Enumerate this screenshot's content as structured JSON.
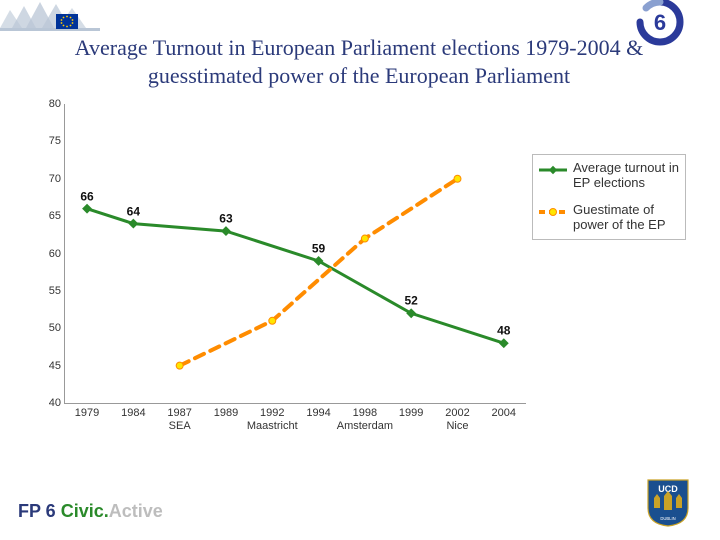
{
  "title": "Average Turnout in European Parliament elections 1979-2004 & guesstimated  power of the European Parliament",
  "chart": {
    "type": "line",
    "ylim": [
      40,
      80
    ],
    "ytick_step": 5,
    "background_color": "#ffffff",
    "axis_color": "#999999",
    "label_fontsize": 11,
    "datalabel_fontsize": 12,
    "x_categories": [
      {
        "label": "1979",
        "sub": ""
      },
      {
        "label": "1984",
        "sub": ""
      },
      {
        "label": "1987",
        "sub": "SEA"
      },
      {
        "label": "1989",
        "sub": ""
      },
      {
        "label": "1992",
        "sub": "Maastricht"
      },
      {
        "label": "1994",
        "sub": ""
      },
      {
        "label": "1998",
        "sub": "Amsterdam"
      },
      {
        "label": "1999",
        "sub": ""
      },
      {
        "label": "2002",
        "sub": "Nice"
      },
      {
        "label": "2004",
        "sub": ""
      }
    ],
    "x_positions": [
      0.05,
      0.155,
      0.26,
      0.365,
      0.47,
      0.575,
      0.68,
      0.785,
      0.89,
      0.995
    ],
    "series": [
      {
        "name": "Average turnout in EP elections",
        "color": "#2a8a2a",
        "line_width": 3,
        "dash": "none",
        "marker": "diamond",
        "marker_size": 7,
        "marker_color": "#2a8a2a",
        "x_idx": [
          0,
          1,
          3,
          5,
          7,
          9
        ],
        "y": [
          66,
          64,
          63,
          59,
          52,
          48
        ],
        "show_labels": true
      },
      {
        "name": "Guestimate of power of the EP",
        "color": "#ff8c00",
        "line_width": 4,
        "dash": "10,7",
        "marker": "circle",
        "marker_size": 7,
        "marker_color": "#ffe600",
        "marker_stroke": "#ff8c00",
        "x_idx": [
          2,
          4,
          6,
          8
        ],
        "y": [
          45,
          51,
          62,
          70
        ],
        "show_labels": false
      }
    ]
  },
  "legend": {
    "items": [
      {
        "label": "Average turnout in EP elections"
      },
      {
        "label": "Guestimate of power of the EP"
      }
    ]
  },
  "footer": {
    "fp6": "FP 6 ",
    "civic": "Civic.",
    "active": "Active"
  },
  "logos": {
    "top_left_name": "eu-parliament-logo",
    "top_right_name": "fp6-logo",
    "bottom_right_name": "ucd-logo"
  },
  "colors": {
    "title": "#2b3a7a",
    "fp6": "#2b3a7a",
    "civic": "#2a8a2a",
    "active": "#bdbdbd"
  }
}
